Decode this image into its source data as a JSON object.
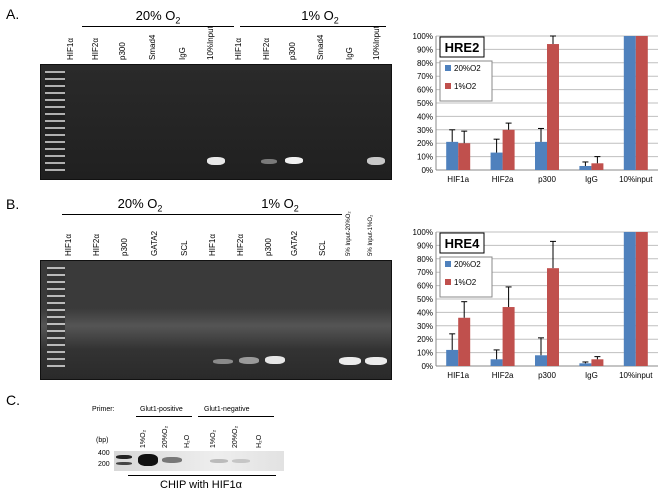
{
  "panels": {
    "a": {
      "letter": "A.",
      "groups": [
        {
          "label": "20% O",
          "sub": "2"
        },
        {
          "label": "1% O",
          "sub": "2"
        }
      ],
      "lanes": [
        "HIF1α",
        "HIF2α",
        "p300",
        "Smad4",
        "IgG",
        "10%Input",
        "HIF1α",
        "HIF2α",
        "p300",
        "Smad4",
        "IgG",
        "10%Input"
      ]
    },
    "b": {
      "letter": "B.",
      "groups": [
        {
          "label": "20% O",
          "sub": "2"
        },
        {
          "label": "1% O",
          "sub": "2"
        }
      ],
      "lanes": [
        "HIF1α",
        "HIF2α",
        "p300",
        "GATA2",
        "SCL",
        "HIF1α",
        "HIF2α",
        "p300",
        "GATA2",
        "SCL",
        "5% Input-20%O₂",
        "5% Input-1%O₂"
      ]
    },
    "c": {
      "letter": "C.",
      "primer_label": "Primer:",
      "pos_label": "Glut1-positive",
      "neg_label": "Glut1-negative",
      "bp_label": "(bp)",
      "ladder": [
        "400",
        "200"
      ],
      "lanes": [
        "1%O₂",
        "20%O₂",
        "H₂O",
        "1%O₂",
        "20%O₂",
        "H₂O"
      ],
      "caption": "CHIP with HIF1α"
    }
  },
  "colors": {
    "o20": "#4F81BD",
    "o1": "#C0504D",
    "grid": "#BFBFBF"
  },
  "chart_data": [
    {
      "type": "bar",
      "title": "HRE2",
      "categories": [
        "HIF1a",
        "HIF2a",
        "p300",
        "IgG",
        "10%input"
      ],
      "series": [
        {
          "name": "20%O2",
          "values": [
            21,
            13,
            21,
            3,
            100
          ],
          "errors": [
            9,
            10,
            10,
            3,
            0
          ]
        },
        {
          "name": "1%O2",
          "values": [
            20,
            30,
            94,
            5,
            100
          ],
          "errors": [
            9,
            5,
            6,
            5,
            0
          ]
        }
      ],
      "ylim": [
        0,
        100
      ],
      "yticks": [
        "0%",
        "10%",
        "20%",
        "30%",
        "40%",
        "50%",
        "60%",
        "70%",
        "80%",
        "90%",
        "100%"
      ],
      "grid": true,
      "legend": "top-left"
    },
    {
      "type": "bar",
      "title": "HRE4",
      "categories": [
        "HIF1a",
        "HIF2a",
        "p300",
        "IgG",
        "10%input"
      ],
      "series": [
        {
          "name": "20%O2",
          "values": [
            12,
            5,
            8,
            2,
            100
          ],
          "errors": [
            12,
            7,
            13,
            1,
            0
          ]
        },
        {
          "name": "1%O2",
          "values": [
            36,
            44,
            73,
            5,
            100
          ],
          "errors": [
            12,
            15,
            20,
            2,
            0
          ]
        }
      ],
      "ylim": [
        0,
        100
      ],
      "yticks": [
        "0%",
        "10%",
        "20%",
        "30%",
        "40%",
        "50%",
        "60%",
        "70%",
        "80%",
        "90%",
        "100%"
      ],
      "grid": true,
      "legend": "top-left"
    }
  ]
}
